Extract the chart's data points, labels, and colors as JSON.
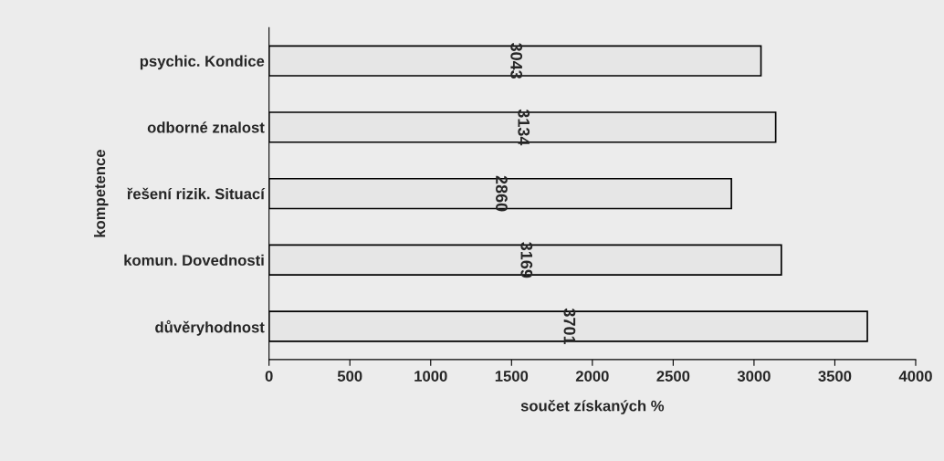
{
  "chart_data": {
    "type": "bar",
    "orientation": "horizontal",
    "xlabel": "součet získaných %",
    "ylabel": "kompetence",
    "categories": [
      "psychic. Kondice",
      "odborné znalost",
      "řešení rizik. Situací",
      "komun. Dovednosti",
      "důvěryhodnost"
    ],
    "values": [
      3043,
      3134,
      2860,
      3169,
      3701
    ],
    "color": "#e6e6e6",
    "xlim": [
      0,
      4000
    ],
    "xticks": [
      0,
      500,
      1000,
      1500,
      2000,
      2500,
      3000,
      3500,
      4000
    ],
    "data_labels": true,
    "grid": false,
    "legend": false
  }
}
